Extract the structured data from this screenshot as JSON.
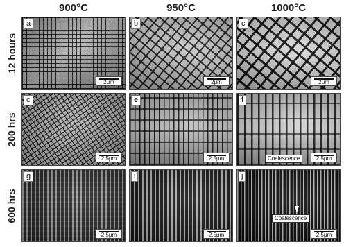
{
  "columns": [
    "900°C",
    "950°C",
    "1000°C"
  ],
  "rows": [
    "12 hours",
    "200 hrs",
    "600 hrs"
  ],
  "panels": [
    {
      "label": "a",
      "scale": "2μm"
    },
    {
      "label": "b",
      "scale": "2μm"
    },
    {
      "label": "c",
      "scale": "2μm"
    },
    {
      "label": "c",
      "scale": "2.5μm"
    },
    {
      "label": "e",
      "scale": "2.5μm"
    },
    {
      "label": "f",
      "scale": "2.5μm",
      "annotation": "Coalescence"
    },
    {
      "label": "g",
      "scale": "2.5μm"
    },
    {
      "label": "i",
      "scale": "2.5μm"
    },
    {
      "label": "j",
      "scale": "2.5μm",
      "annotation": "Coalescence"
    }
  ]
}
